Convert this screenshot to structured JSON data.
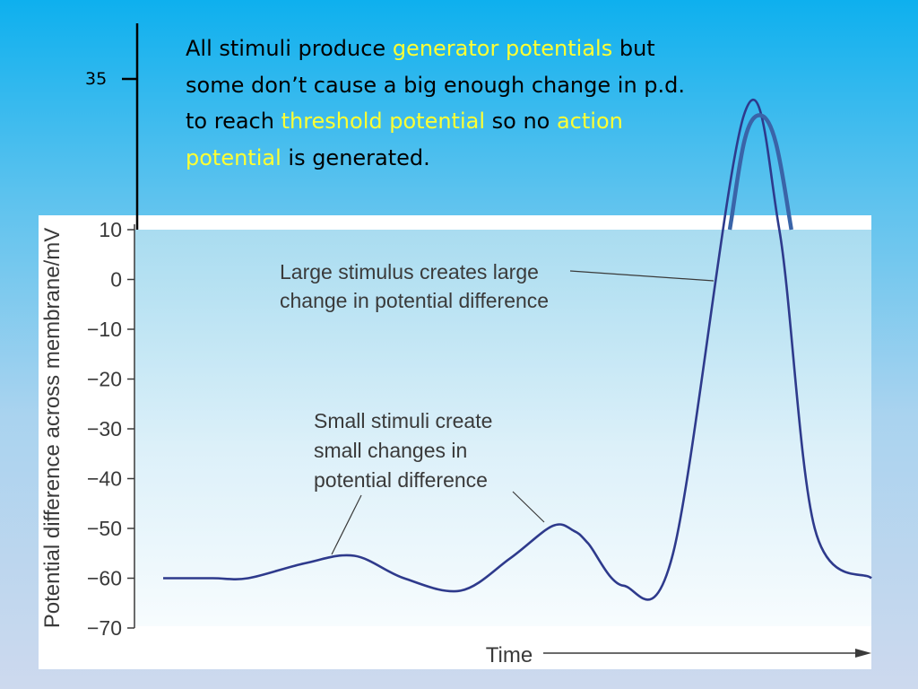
{
  "slide": {
    "page_number": "35",
    "callout": {
      "t1": "All stimuli produce ",
      "h1": "generator potentials",
      "t2": " but some  don’t cause a big enough change in p.d. to reach ",
      "h2": "threshold potential",
      "t3": "  so no  ",
      "h3": "action potential",
      "t4": " is generated."
    }
  },
  "chart_data": {
    "type": "line",
    "ylabel": "Potential difference across membrane/mV",
    "xlabel": "Time",
    "ylim": [
      -70,
      10
    ],
    "yticks": [
      10,
      0,
      -10,
      -20,
      -30,
      -40,
      -50,
      -60,
      -70
    ],
    "ytick_labels": [
      "10",
      "0",
      "−10",
      "−20",
      "−30",
      "−40",
      "−50",
      "−60",
      "−70"
    ],
    "extended_tick_label": "35",
    "peak_value": 33,
    "series": [
      {
        "x": [
          0,
          0.07,
          0.12,
          0.2,
          0.27,
          0.34,
          0.42,
          0.49,
          0.55,
          0.58,
          0.6,
          0.65,
          0.72,
          0.82,
          0.87,
          0.92,
          1.0
        ],
        "y": [
          -60,
          -60,
          -60,
          -57,
          -55.5,
          -60,
          -62.5,
          -56,
          -49.5,
          -50.5,
          -53,
          -61.5,
          -55,
          33,
          10,
          -50,
          -60
        ]
      }
    ],
    "annotations": [
      {
        "line1": "Large stimulus creates large",
        "line2": "change in potential difference"
      },
      {
        "line1": "Small stimuli create",
        "line2": "small changes in",
        "line3": "potential difference"
      }
    ],
    "grid": false
  },
  "colors": {
    "curve": "#2e3a8c",
    "peak": "#3a64a8",
    "highlight": "#ffff33"
  }
}
